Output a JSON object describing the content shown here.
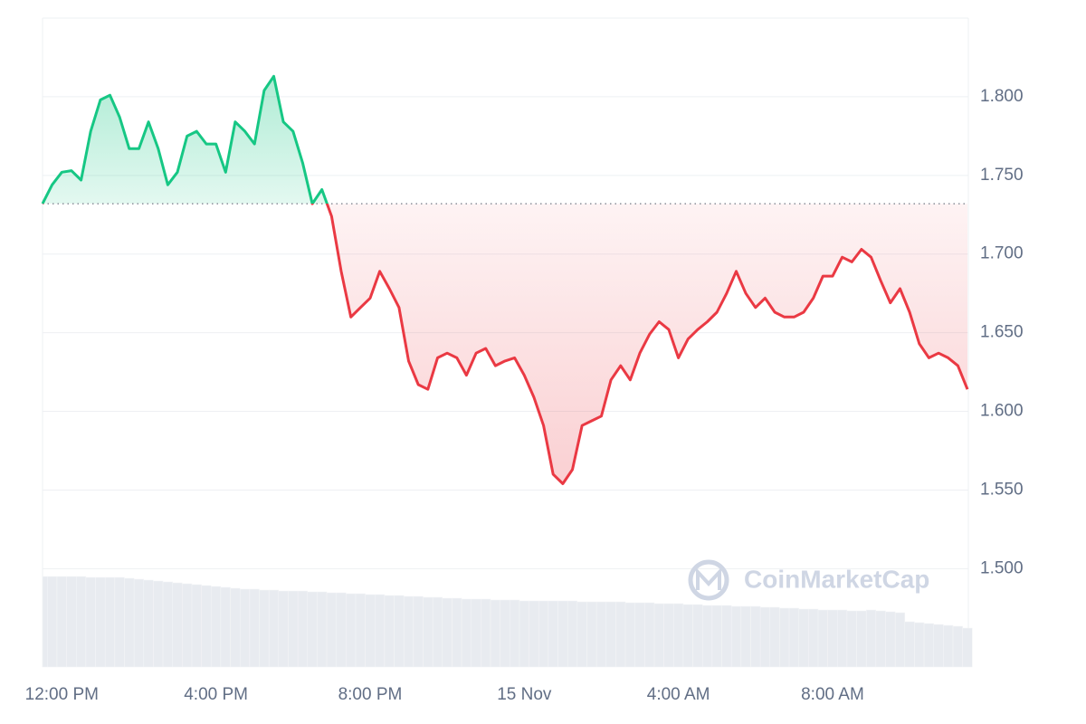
{
  "chart_data": {
    "type": "line",
    "categories": [
      null,
      null,
      "12:00 PM",
      null,
      null,
      null,
      null,
      null,
      null,
      null,
      null,
      null,
      null,
      null,
      null,
      null,
      null,
      null,
      "4:00 PM",
      null,
      null,
      null,
      null,
      null,
      null,
      null,
      null,
      null,
      null,
      null,
      null,
      null,
      null,
      null,
      "8:00 PM",
      null,
      null,
      null,
      null,
      null,
      null,
      null,
      null,
      null,
      null,
      null,
      null,
      null,
      null,
      null,
      "15 Nov",
      null,
      null,
      null,
      null,
      null,
      null,
      null,
      null,
      null,
      null,
      null,
      null,
      null,
      null,
      null,
      "4:00 AM",
      null,
      null,
      null,
      null,
      null,
      null,
      null,
      null,
      null,
      null,
      null,
      null,
      null,
      null,
      null,
      "8:00 AM",
      null,
      null,
      null,
      null,
      null,
      null,
      null,
      null,
      null,
      null,
      null,
      null,
      null,
      null
    ],
    "values": [
      1.732,
      1.744,
      1.752,
      1.753,
      1.747,
      1.778,
      1.798,
      1.801,
      1.787,
      1.767,
      1.767,
      1.784,
      1.767,
      1.744,
      1.752,
      1.775,
      1.778,
      1.77,
      1.77,
      1.752,
      1.784,
      1.778,
      1.77,
      1.804,
      1.813,
      1.784,
      1.778,
      1.758,
      1.732,
      1.741,
      1.724,
      1.689,
      1.66,
      1.666,
      1.672,
      1.689,
      1.678,
      1.666,
      1.632,
      1.617,
      1.614,
      1.634,
      1.637,
      1.634,
      1.623,
      1.637,
      1.64,
      1.629,
      1.632,
      1.634,
      1.623,
      1.609,
      1.591,
      1.56,
      1.554,
      1.563,
      1.591,
      1.594,
      1.597,
      1.62,
      1.629,
      1.62,
      1.637,
      1.649,
      1.657,
      1.652,
      1.634,
      1.646,
      1.652,
      1.657,
      1.663,
      1.675,
      1.689,
      1.675,
      1.666,
      1.672,
      1.663,
      1.66,
      1.66,
      1.663,
      1.672,
      1.686,
      1.686,
      1.698,
      1.695,
      1.703,
      1.698,
      1.683,
      1.669,
      1.678,
      1.663,
      1.643,
      1.634,
      1.637,
      1.634,
      1.629,
      1.614
    ],
    "volume": [
      100,
      100,
      100,
      100,
      100,
      99,
      99,
      99,
      99,
      98,
      97,
      96,
      95,
      94,
      93,
      92,
      91,
      90,
      89,
      88,
      87,
      86,
      86,
      85,
      85,
      84,
      84,
      84,
      83,
      83,
      82,
      82,
      81,
      81,
      80,
      80,
      79,
      79,
      78,
      78,
      77,
      77,
      76,
      76,
      75,
      75,
      75,
      74,
      74,
      74,
      73,
      73,
      73,
      73,
      73,
      73,
      72,
      72,
      72,
      72,
      72,
      71,
      71,
      71,
      70,
      70,
      70,
      69,
      69,
      68,
      68,
      68,
      67,
      67,
      67,
      66,
      66,
      65,
      65,
      64,
      64,
      63,
      63,
      63,
      62,
      62,
      63,
      62,
      61,
      60,
      50,
      49,
      48,
      47,
      46,
      45,
      43
    ],
    "baseline": 1.732,
    "up_color": "#16c784",
    "down_color": "#ea3943",
    "volume_color": "#e8ebf0",
    "ylim": [
      1.4375,
      1.85
    ],
    "yticks": [
      {
        "value": 1.5,
        "label": "1.500"
      },
      {
        "value": 1.55,
        "label": "1.550"
      },
      {
        "value": 1.6,
        "label": "1.600"
      },
      {
        "value": 1.65,
        "label": "1.650"
      },
      {
        "value": 1.7,
        "label": "1.700"
      },
      {
        "value": 1.75,
        "label": "1.750"
      },
      {
        "value": 1.8,
        "label": "1.800"
      }
    ],
    "grid": true,
    "watermark": "CoinMarketCap"
  }
}
